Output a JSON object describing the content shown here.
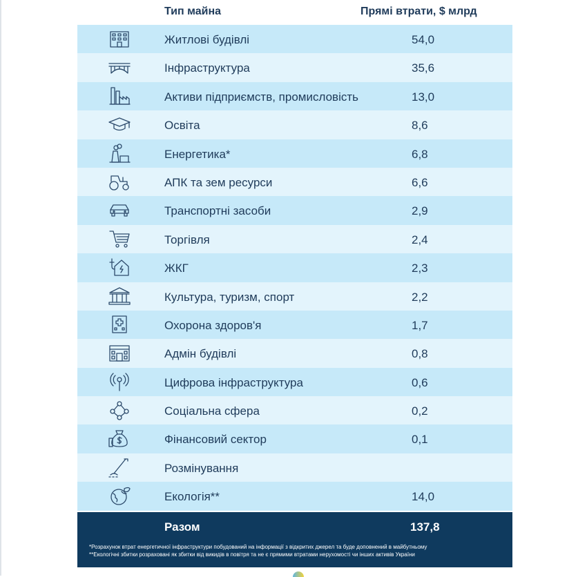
{
  "chart_data": {
    "type": "table",
    "columns": [
      "Тип майна",
      "Прямі втрати, $ млрд"
    ],
    "rows": [
      {
        "icon": "apartment-building-icon",
        "label": "Житлові будівлі",
        "value": "54,0"
      },
      {
        "icon": "bridge-icon",
        "label": "Інфраструктура",
        "value": "35,6"
      },
      {
        "icon": "factory-icon",
        "label": "Активи підприємств, промисловість",
        "value": "13,0"
      },
      {
        "icon": "graduation-cap-icon",
        "label": "Освіта",
        "value": "8,6"
      },
      {
        "icon": "power-plant-icon",
        "label": "Енергетика*",
        "value": "6,8"
      },
      {
        "icon": "tractor-icon",
        "label": "АПК та зем ресурси",
        "value": "6,6"
      },
      {
        "icon": "car-icon",
        "label": "Транспортні засоби",
        "value": "2,9"
      },
      {
        "icon": "shopping-cart-icon",
        "label": "Торгівля",
        "value": "2,4"
      },
      {
        "icon": "house-utilities-icon",
        "label": "ЖКГ",
        "value": "2,3"
      },
      {
        "icon": "museum-icon",
        "label": "Культура, туризм, спорт",
        "value": "2,2"
      },
      {
        "icon": "hospital-icon",
        "label": "Охорона здоров'я",
        "value": "1,7"
      },
      {
        "icon": "government-building-icon",
        "label": "Адмін будівлі",
        "value": "0,8"
      },
      {
        "icon": "signal-tower-icon",
        "label": "Цифрова інфраструктура",
        "value": "0,6"
      },
      {
        "icon": "people-network-icon",
        "label": "Соціальна сфера",
        "value": "0,2"
      },
      {
        "icon": "money-bag-icon",
        "label": "Фінансовий сектор",
        "value": "0,1"
      },
      {
        "icon": "mine-detector-icon",
        "label": "Розмінування",
        "value": ""
      },
      {
        "icon": "globe-leaf-icon",
        "label": "Екологія**",
        "value": "14,0"
      }
    ],
    "total": {
      "label": "Разом",
      "value": "137,8"
    },
    "footnotes": [
      "*Розрахунок втрат енергетичної інфраструктури побудований на інформації з відкритих джерел та буде доповнений в майбутньому",
      "**Екологічні збитки розраховані як збитки від викидів в повітря та не є прямими втратами нерухомості чи інших активів України"
    ]
  },
  "colors": {
    "row_dark": "#c6e9f9",
    "row_light": "#e3f4fc",
    "total_bg": "#0f3a5e",
    "text": "#1f3b5a"
  }
}
